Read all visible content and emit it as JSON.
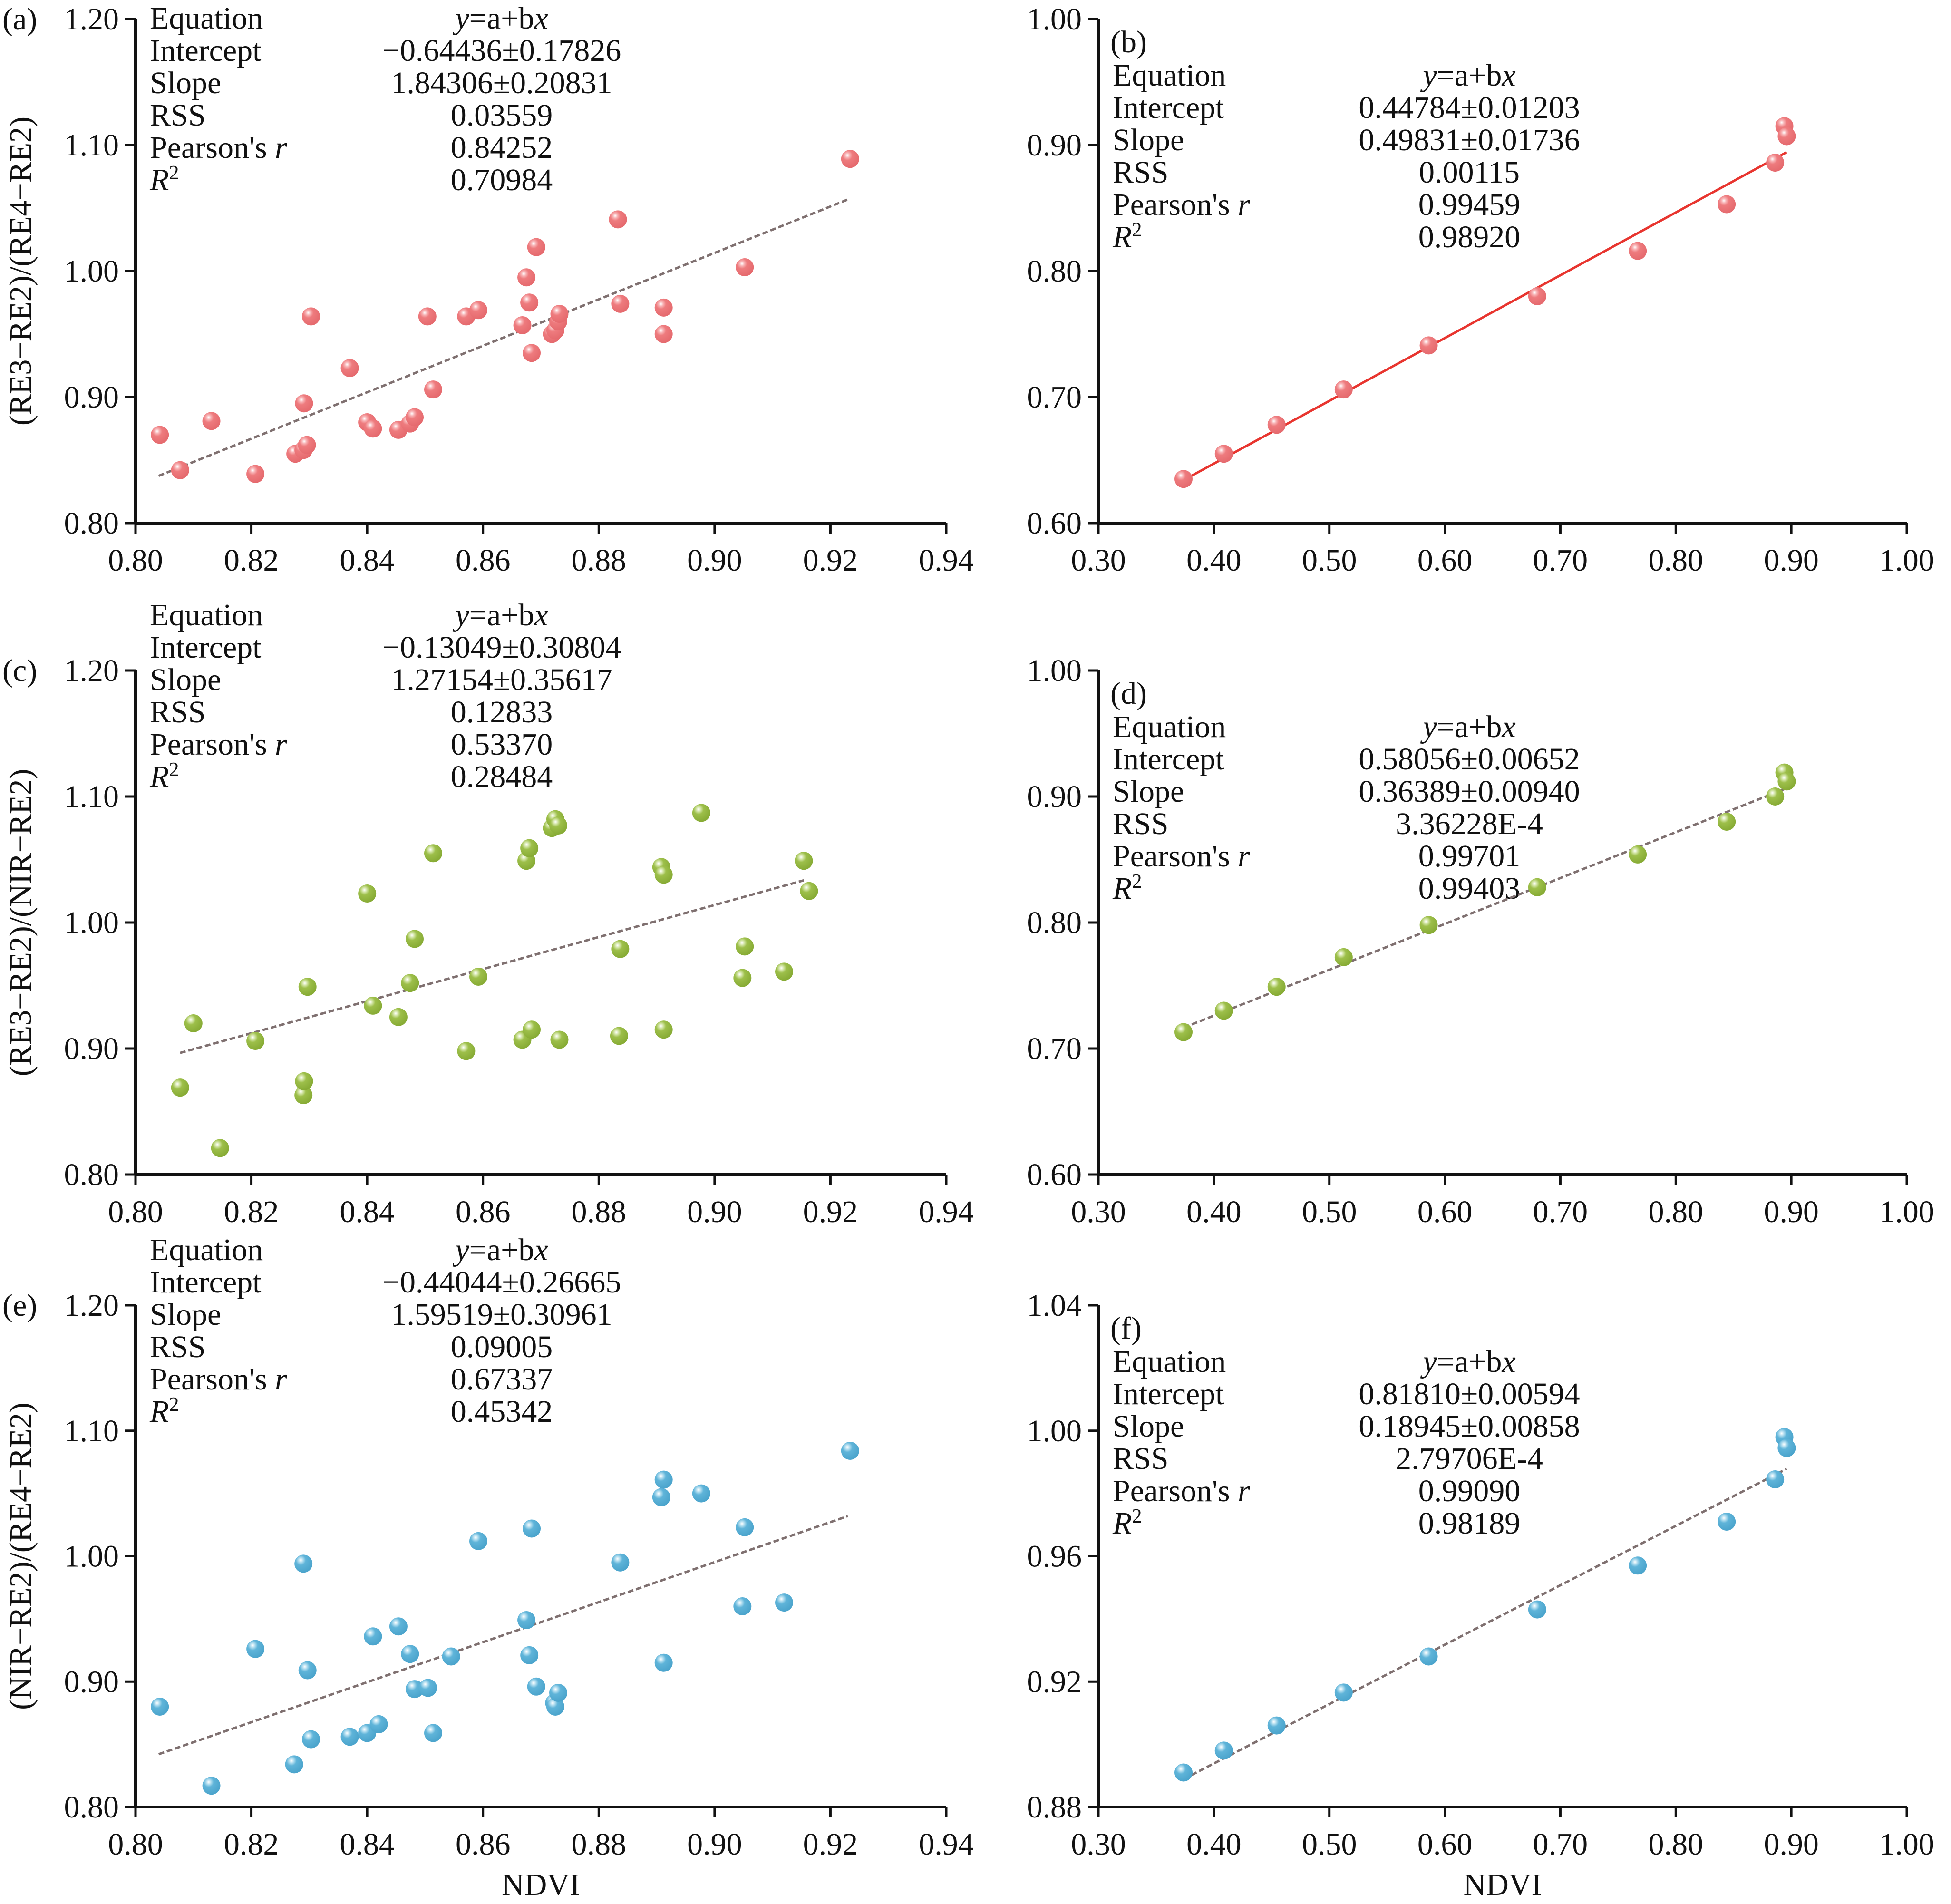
{
  "figure": {
    "x_axis_title": "NDVI",
    "stat_keys": [
      "Equation",
      "Intercept",
      "Slope",
      "RSS",
      "Pearson's r",
      "R2"
    ]
  },
  "chart_data": [
    {
      "id": "a",
      "type": "scatter",
      "panel_label": "(a)",
      "ylabel": "(RE3−RE2)/(RE4−RE2)",
      "xlabel": "",
      "xlim": [
        0.8,
        0.94
      ],
      "ylim": [
        0.8,
        1.2
      ],
      "xticks": [
        "0.80",
        "0.82",
        "0.84",
        "0.86",
        "0.88",
        "0.90",
        "0.92",
        "0.94"
      ],
      "yticks": [
        "0.80",
        "0.90",
        "1.00",
        "1.10",
        "1.20"
      ],
      "grid": false,
      "color": "#ee7b7e",
      "fit": {
        "intercept": -0.64436,
        "slope": 1.84306,
        "x_range": [
          0.804,
          0.923
        ],
        "style": "dashed",
        "color": "#7f7070"
      },
      "stats": {
        "equation": "y=a+bx",
        "intercept": "−0.64436±0.17826",
        "slope": "1.84306±0.20831",
        "rss": "0.03559",
        "pearson_r": "0.84252",
        "r2": "0.70984"
      },
      "x": [
        0.8042,
        0.8077,
        0.8131,
        0.8207,
        0.8276,
        0.829,
        0.8296,
        0.8291,
        0.8303,
        0.837,
        0.84,
        0.841,
        0.8454,
        0.8474,
        0.8482,
        0.8514,
        0.8504,
        0.8571,
        0.8592,
        0.8668,
        0.8675,
        0.868,
        0.8684,
        0.8692,
        0.8719,
        0.8725,
        0.873,
        0.8732,
        0.8833,
        0.8837,
        0.8912,
        0.8912,
        0.9052,
        0.9234
      ],
      "y": [
        0.87,
        0.842,
        0.881,
        0.839,
        0.855,
        0.858,
        0.862,
        0.895,
        0.964,
        0.923,
        0.88,
        0.875,
        0.874,
        0.879,
        0.884,
        0.906,
        0.964,
        0.964,
        0.969,
        0.957,
        0.995,
        0.975,
        0.935,
        1.019,
        0.95,
        0.953,
        0.96,
        0.966,
        1.041,
        0.974,
        0.971,
        0.95,
        1.003,
        1.089
      ]
    },
    {
      "id": "b",
      "type": "scatter",
      "panel_label": "(b)",
      "ylabel": "",
      "xlabel": "",
      "xlim": [
        0.3,
        1.0
      ],
      "ylim": [
        0.6,
        1.0
      ],
      "xticks": [
        "0.30",
        "0.40",
        "0.50",
        "0.60",
        "0.70",
        "0.80",
        "0.90",
        "1.00"
      ],
      "yticks": [
        "0.60",
        "0.70",
        "0.80",
        "0.90",
        "1.00"
      ],
      "grid": false,
      "color": "#ee7b7e",
      "fit": {
        "intercept": 0.44784,
        "slope": 0.49831,
        "x_range": [
          0.374,
          0.896
        ],
        "style": "solid",
        "color": "#e8352f"
      },
      "stats": {
        "equation": "y=a+bx",
        "intercept": "0.44784±0.01203",
        "slope": "0.49831±0.01736",
        "rss": "0.00115",
        "pearson_r": "0.99459",
        "r2": "0.98920"
      },
      "x": [
        0.3737,
        0.4086,
        0.4543,
        0.5124,
        0.586,
        0.68,
        0.767,
        0.844,
        0.886,
        0.894,
        0.896
      ],
      "y": [
        0.635,
        0.655,
        0.678,
        0.706,
        0.741,
        0.78,
        0.816,
        0.853,
        0.886,
        0.915,
        0.907
      ]
    },
    {
      "id": "c",
      "type": "scatter",
      "panel_label": "(c)",
      "ylabel": "(RE3−RE2)/(NIR−RE2)",
      "xlabel": "",
      "xlim": [
        0.8,
        0.94
      ],
      "ylim": [
        0.8,
        1.2
      ],
      "xticks": [
        "0.80",
        "0.82",
        "0.84",
        "0.86",
        "0.88",
        "0.90",
        "0.92",
        "0.94"
      ],
      "yticks": [
        "0.80",
        "0.90",
        "1.00",
        "1.10",
        "1.20"
      ],
      "grid": false,
      "color": "#9dbf4a",
      "fit": {
        "intercept": -0.13049,
        "slope": 1.27154,
        "x_range": [
          0.8077,
          0.9154
        ],
        "style": "dashed",
        "color": "#7f7070"
      },
      "stats": {
        "equation": "y=a+bx",
        "intercept": "−0.13049±0.30804",
        "slope": "1.27154±0.35617",
        "rss": "0.12833",
        "pearson_r": "0.53370",
        "r2": "0.28484"
      },
      "x": [
        0.8077,
        0.81,
        0.8146,
        0.8207,
        0.829,
        0.8291,
        0.8297,
        0.84,
        0.841,
        0.8454,
        0.8474,
        0.8482,
        0.8514,
        0.8571,
        0.8592,
        0.8668,
        0.8675,
        0.868,
        0.8684,
        0.8719,
        0.8725,
        0.873,
        0.8732,
        0.8835,
        0.8837,
        0.8908,
        0.8912,
        0.8912,
        0.8977,
        0.9048,
        0.9052,
        0.912,
        0.9154,
        0.9163
      ],
      "y": [
        0.869,
        0.92,
        0.821,
        0.906,
        0.863,
        0.874,
        0.949,
        1.023,
        0.934,
        0.925,
        0.952,
        0.987,
        1.055,
        0.898,
        0.957,
        0.907,
        1.049,
        1.059,
        0.915,
        1.075,
        1.082,
        1.077,
        0.907,
        0.91,
        0.979,
        1.044,
        1.038,
        0.915,
        1.087,
        0.956,
        0.981,
        0.961,
        1.049,
        1.025
      ]
    },
    {
      "id": "d",
      "type": "scatter",
      "panel_label": "(d)",
      "ylabel": "",
      "xlabel": "",
      "xlim": [
        0.3,
        1.0
      ],
      "ylim": [
        0.6,
        1.0
      ],
      "xticks": [
        "0.30",
        "0.40",
        "0.50",
        "0.60",
        "0.70",
        "0.80",
        "0.90",
        "1.00"
      ],
      "yticks": [
        "0.60",
        "0.70",
        "0.80",
        "0.90",
        "1.00"
      ],
      "grid": false,
      "color": "#9dbf4a",
      "fit": {
        "intercept": 0.58056,
        "slope": 0.36389,
        "x_range": [
          0.374,
          0.896
        ],
        "style": "dashed",
        "color": "#7f7070"
      },
      "stats": {
        "equation": "y=a+bx",
        "intercept": "0.58056±0.00652",
        "slope": "0.36389±0.00940",
        "rss": "3.36228E-4",
        "pearson_r": "0.99701",
        "r2": "0.99403"
      },
      "x": [
        0.3737,
        0.4086,
        0.4543,
        0.5124,
        0.586,
        0.68,
        0.767,
        0.844,
        0.886,
        0.894,
        0.896
      ],
      "y": [
        0.713,
        0.73,
        0.749,
        0.7725,
        0.798,
        0.828,
        0.854,
        0.88,
        0.9,
        0.919,
        0.912
      ]
    },
    {
      "id": "e",
      "type": "scatter",
      "panel_label": "(e)",
      "ylabel": "(NIR−RE2)/(RE4−RE2)",
      "xlabel": "NDVI",
      "xlim": [
        0.8,
        0.94
      ],
      "ylim": [
        0.8,
        1.2
      ],
      "xticks": [
        "0.80",
        "0.82",
        "0.84",
        "0.86",
        "0.88",
        "0.90",
        "0.92",
        "0.94"
      ],
      "yticks": [
        "0.80",
        "0.90",
        "1.00",
        "1.10",
        "1.20"
      ],
      "grid": false,
      "color": "#5fb4d9",
      "fit": {
        "intercept": -0.44044,
        "slope": 1.59519,
        "x_range": [
          0.804,
          0.923
        ],
        "style": "dashed",
        "color": "#7f7070"
      },
      "stats": {
        "equation": "y=a+bx",
        "intercept": "−0.44044±0.26665",
        "slope": "1.59519±0.30961",
        "rss": "0.09005",
        "pearson_r": "0.67337",
        "r2": "0.45342"
      },
      "x": [
        0.8042,
        0.8131,
        0.8207,
        0.8274,
        0.829,
        0.8297,
        0.8303,
        0.837,
        0.84,
        0.842,
        0.841,
        0.8454,
        0.8474,
        0.8482,
        0.8505,
        0.8514,
        0.8545,
        0.8592,
        0.8675,
        0.868,
        0.8684,
        0.8692,
        0.8723,
        0.8725,
        0.873,
        0.8837,
        0.8908,
        0.8912,
        0.8912,
        0.8977,
        0.9048,
        0.9052,
        0.912,
        0.9234
      ],
      "y": [
        0.88,
        0.817,
        0.926,
        0.834,
        0.994,
        0.909,
        0.854,
        0.856,
        0.859,
        0.866,
        0.936,
        0.944,
        0.922,
        0.894,
        0.895,
        0.859,
        0.92,
        1.012,
        0.949,
        0.921,
        1.022,
        0.896,
        0.883,
        0.88,
        0.891,
        0.995,
        1.047,
        1.061,
        0.915,
        1.05,
        0.96,
        1.023,
        0.963,
        1.084
      ]
    },
    {
      "id": "f",
      "type": "scatter",
      "panel_label": "(f)",
      "ylabel": "",
      "xlabel": "NDVI",
      "xlim": [
        0.3,
        1.0
      ],
      "ylim": [
        0.88,
        1.04
      ],
      "xticks": [
        "0.30",
        "0.40",
        "0.50",
        "0.60",
        "0.70",
        "0.80",
        "0.90",
        "1.00"
      ],
      "yticks": [
        "0.88",
        "0.92",
        "0.96",
        "1.00",
        "1.04"
      ],
      "grid": false,
      "color": "#5fb4d9",
      "fit": {
        "intercept": 0.8181,
        "slope": 0.18945,
        "x_range": [
          0.374,
          0.896
        ],
        "style": "dashed",
        "color": "#7f7070"
      },
      "stats": {
        "equation": "y=a+bx",
        "intercept": "0.81810±0.00594",
        "slope": "0.18945±0.00858",
        "rss": "2.79706E-4",
        "pearson_r": "0.99090",
        "r2": "0.98189"
      },
      "x": [
        0.3737,
        0.4086,
        0.4543,
        0.5124,
        0.586,
        0.68,
        0.767,
        0.844,
        0.886,
        0.894,
        0.896
      ],
      "y": [
        0.891,
        0.898,
        0.906,
        0.9165,
        0.928,
        0.943,
        0.957,
        0.971,
        0.9845,
        0.998,
        0.9945
      ]
    }
  ]
}
